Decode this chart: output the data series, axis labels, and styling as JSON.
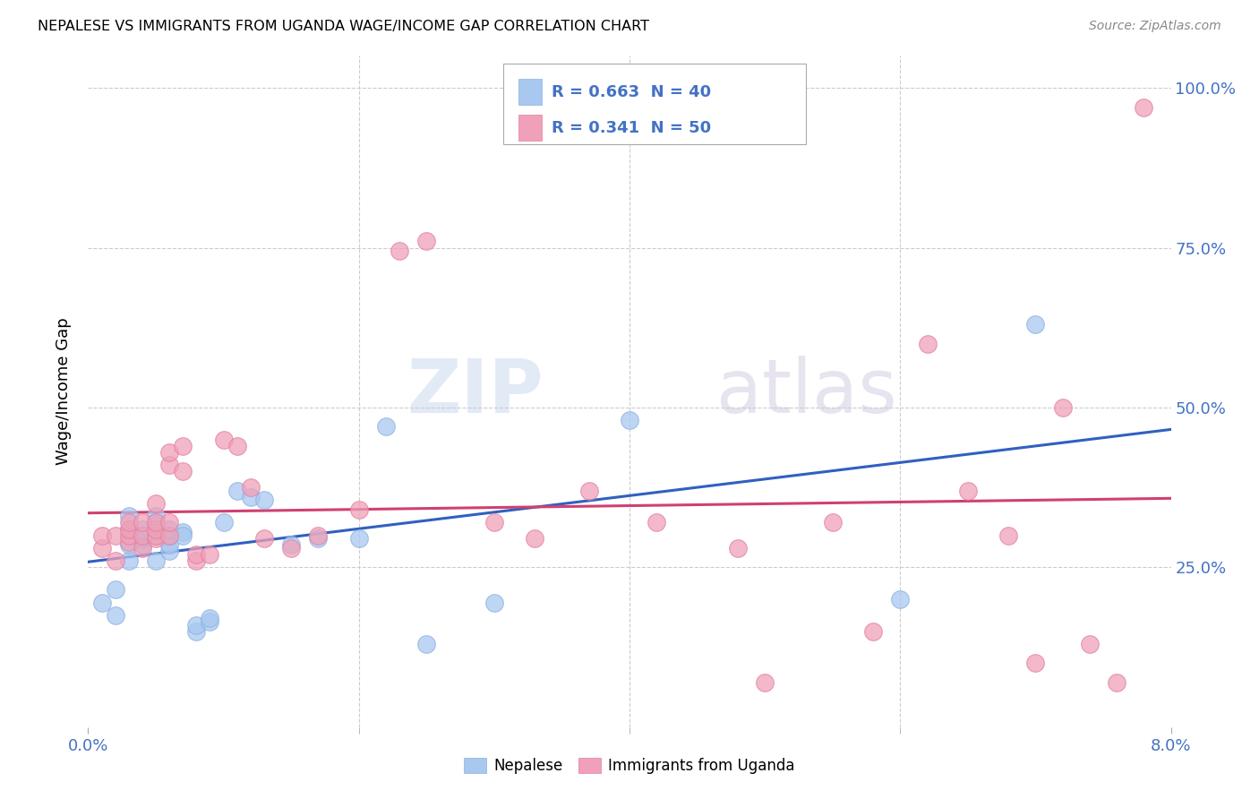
{
  "title": "NEPALESE VS IMMIGRANTS FROM UGANDA WAGE/INCOME GAP CORRELATION CHART",
  "source": "Source: ZipAtlas.com",
  "ylabel": "Wage/Income Gap",
  "legend1_R": "0.663",
  "legend1_N": "40",
  "legend2_R": "0.341",
  "legend2_N": "50",
  "legend1_label": "Nepalese",
  "legend2_label": "Immigrants from Uganda",
  "blue_color": "#a8c8f0",
  "pink_color": "#f0a0b8",
  "line_blue": "#3060c0",
  "line_pink": "#d04070",
  "text_blue": "#4472c4",
  "background": "#ffffff",
  "nepalese_x": [
    0.001,
    0.002,
    0.002,
    0.003,
    0.003,
    0.003,
    0.003,
    0.004,
    0.004,
    0.004,
    0.004,
    0.004,
    0.005,
    0.005,
    0.005,
    0.005,
    0.005,
    0.006,
    0.006,
    0.006,
    0.006,
    0.007,
    0.007,
    0.008,
    0.008,
    0.009,
    0.009,
    0.01,
    0.011,
    0.012,
    0.013,
    0.015,
    0.017,
    0.02,
    0.022,
    0.025,
    0.03,
    0.04,
    0.06,
    0.07
  ],
  "nepalese_y": [
    0.195,
    0.175,
    0.215,
    0.26,
    0.285,
    0.31,
    0.33,
    0.285,
    0.295,
    0.3,
    0.3,
    0.31,
    0.26,
    0.3,
    0.305,
    0.32,
    0.33,
    0.275,
    0.285,
    0.3,
    0.31,
    0.305,
    0.3,
    0.15,
    0.16,
    0.165,
    0.17,
    0.32,
    0.37,
    0.36,
    0.355,
    0.285,
    0.295,
    0.295,
    0.47,
    0.13,
    0.195,
    0.48,
    0.2,
    0.63
  ],
  "uganda_x": [
    0.001,
    0.001,
    0.002,
    0.002,
    0.003,
    0.003,
    0.003,
    0.003,
    0.004,
    0.004,
    0.004,
    0.005,
    0.005,
    0.005,
    0.005,
    0.005,
    0.006,
    0.006,
    0.006,
    0.006,
    0.007,
    0.007,
    0.008,
    0.008,
    0.009,
    0.01,
    0.011,
    0.012,
    0.013,
    0.015,
    0.017,
    0.02,
    0.023,
    0.025,
    0.03,
    0.033,
    0.037,
    0.042,
    0.048,
    0.05,
    0.055,
    0.058,
    0.062,
    0.065,
    0.068,
    0.07,
    0.072,
    0.074,
    0.076,
    0.078
  ],
  "uganda_y": [
    0.28,
    0.3,
    0.26,
    0.3,
    0.29,
    0.3,
    0.31,
    0.32,
    0.28,
    0.3,
    0.32,
    0.295,
    0.3,
    0.31,
    0.32,
    0.35,
    0.41,
    0.43,
    0.3,
    0.32,
    0.4,
    0.44,
    0.26,
    0.27,
    0.27,
    0.45,
    0.44,
    0.375,
    0.295,
    0.28,
    0.3,
    0.34,
    0.745,
    0.76,
    0.32,
    0.295,
    0.37,
    0.32,
    0.28,
    0.07,
    0.32,
    0.15,
    0.6,
    0.37,
    0.3,
    0.1,
    0.5,
    0.13,
    0.07,
    0.97
  ],
  "xmin": 0.0,
  "xmax": 0.08,
  "ymin": 0.0,
  "ymax": 1.05,
  "ytick_vals": [
    0.25,
    0.5,
    0.75,
    1.0
  ],
  "ytick_labels": [
    "25.0%",
    "50.0%",
    "75.0%",
    "100.0%"
  ]
}
